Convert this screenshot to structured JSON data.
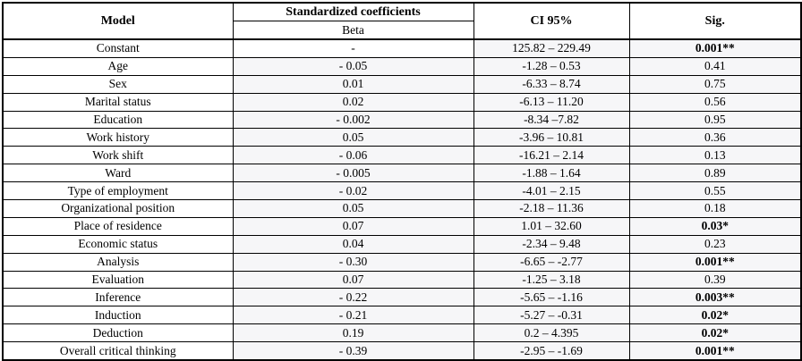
{
  "colors": {
    "border": "#000000",
    "text": "#000000",
    "cell_shade": "#f6f6f8",
    "background": "#ffffff"
  },
  "table": {
    "headers": {
      "model": "Model",
      "standardized_coefficients": "Standardized coefficients",
      "beta": "Beta",
      "ci": "CI 95%",
      "sig": "Sig."
    },
    "rows": [
      {
        "model": "Constant",
        "beta": "-",
        "ci": "125.82 – 229.49",
        "sig": "0.001**",
        "sig_bold": true
      },
      {
        "model": "Age",
        "beta": "- 0.05",
        "ci": "-1.28 – 0.53",
        "sig": "0.41",
        "sig_bold": false
      },
      {
        "model": "Sex",
        "beta": "0.01",
        "ci": "-6.33 – 8.74",
        "sig": "0.75",
        "sig_bold": false
      },
      {
        "model": "Marital status",
        "beta": "0.02",
        "ci": "-6.13 – 11.20",
        "sig": "0.56",
        "sig_bold": false
      },
      {
        "model": "Education",
        "beta": "- 0.002",
        "ci": "-8.34 –7.82",
        "sig": "0.95",
        "sig_bold": false
      },
      {
        "model": "Work history",
        "beta": "0.05",
        "ci": "-3.96 – 10.81",
        "sig": "0.36",
        "sig_bold": false
      },
      {
        "model": "Work shift",
        "beta": "- 0.06",
        "ci": "-16.21 – 2.14",
        "sig": "0.13",
        "sig_bold": false
      },
      {
        "model": "Ward",
        "beta": "- 0.005",
        "ci": "-1.88 – 1.64",
        "sig": "0.89",
        "sig_bold": false
      },
      {
        "model": "Type of employment",
        "beta": "- 0.02",
        "ci": "-4.01 – 2.15",
        "sig": "0.55",
        "sig_bold": false
      },
      {
        "model": "Organizational position",
        "beta": "0.05",
        "ci": "-2.18 – 11.36",
        "sig": "0.18",
        "sig_bold": false
      },
      {
        "model": "Place of residence",
        "beta": "0.07",
        "ci": "1.01 – 32.60",
        "sig": "0.03*",
        "sig_bold": true
      },
      {
        "model": "Economic status",
        "beta": "0.04",
        "ci": "-2.34 – 9.48",
        "sig": "0.23",
        "sig_bold": false
      },
      {
        "model": "Analysis",
        "beta": "- 0.30",
        "ci": "-6.65 – -2.77",
        "sig": "0.001**",
        "sig_bold": true
      },
      {
        "model": "Evaluation",
        "beta": "0.07",
        "ci": "-1.25 – 3.18",
        "sig": "0.39",
        "sig_bold": false
      },
      {
        "model": "Inference",
        "beta": "- 0.22",
        "ci": "-5.65 – -1.16",
        "sig": "0.003**",
        "sig_bold": true
      },
      {
        "model": "Induction",
        "beta": "- 0.21",
        "ci": "-5.27 – -0.31",
        "sig": "0.02*",
        "sig_bold": true
      },
      {
        "model": "Deduction",
        "beta": "0.19",
        "ci": "0.2 – 4.395",
        "sig": "0.02*",
        "sig_bold": true
      },
      {
        "model": "Overall critical thinking",
        "beta": "- 0.39",
        "ci": "-2.95 – -1.69",
        "sig": "0.001**",
        "sig_bold": true
      }
    ]
  }
}
